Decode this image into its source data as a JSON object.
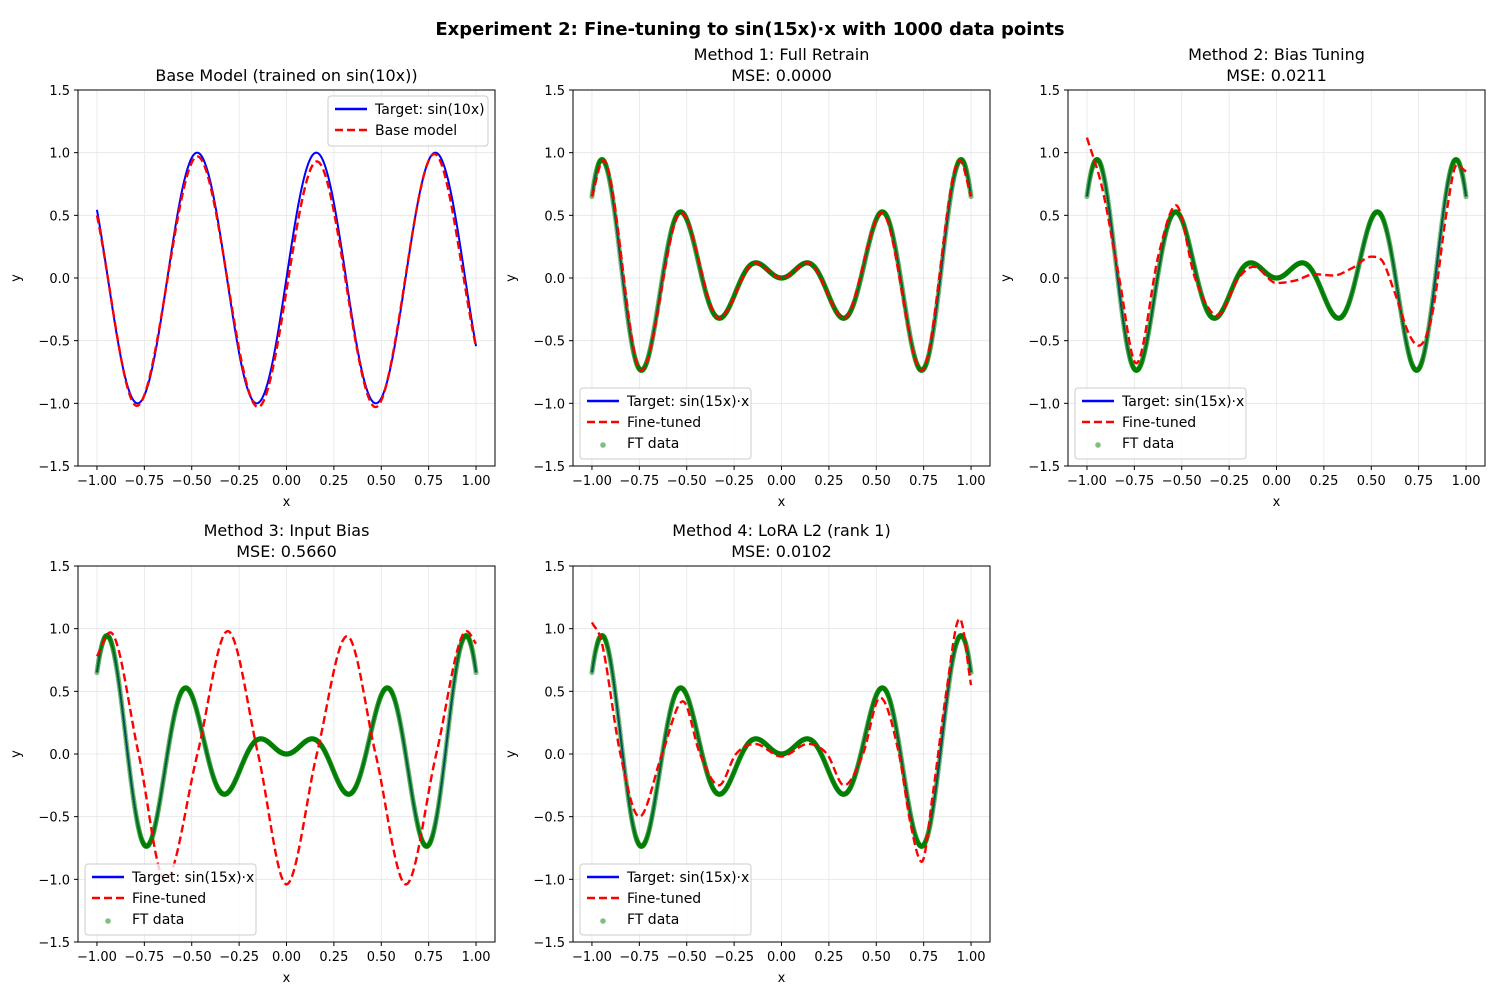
{
  "figure": {
    "suptitle": "Experiment 2: Fine-tuning to sin(15x)·x with 1000 data points"
  },
  "axis_defaults": {
    "xlabel": "x",
    "ylabel": "y",
    "xlim": [
      -1.1,
      1.1
    ],
    "ylim": [
      -1.5,
      1.5
    ],
    "xticks": [
      -1.0,
      -0.75,
      -0.5,
      -0.25,
      0.0,
      0.25,
      0.5,
      0.75,
      1.0
    ],
    "xtick_labels": [
      "−1.00",
      "−0.75",
      "−0.50",
      "−0.25",
      "0.00",
      "0.25",
      "0.50",
      "0.75",
      "1.00"
    ],
    "yticks": [
      -1.5,
      -1.0,
      -0.5,
      0.0,
      0.5,
      1.0,
      1.5
    ],
    "ytick_labels": [
      "−1.5",
      "−1.0",
      "−0.5",
      "0.0",
      "0.5",
      "1.0",
      "1.5"
    ],
    "grid": true
  },
  "colors": {
    "target": "#0000ff",
    "model": "#ff0000",
    "ft_data": "#008000",
    "grid": "#e6e6e6",
    "legend_border": "#cccccc"
  },
  "chart_data": [
    {
      "type": "line",
      "title_lines": [
        "Base Model (trained on sin(10x))"
      ],
      "legend_position": "upper right",
      "legend": [
        "Target: sin(10x)",
        "Base model"
      ],
      "x_range": [
        -1.0,
        1.0
      ],
      "series": [
        {
          "name": "Target: sin(10x)",
          "style": "solid",
          "formula": "sin(10x)",
          "x": [
            -1.0,
            -0.785,
            -0.471,
            -0.157,
            0.157,
            0.471,
            0.785,
            1.0
          ],
          "y": [
            0.544,
            -1.0,
            1.0,
            -1.0,
            1.0,
            -1.0,
            1.0,
            -0.544
          ]
        },
        {
          "name": "Base model",
          "style": "dashed",
          "x": [
            -1.0,
            -0.79,
            -0.47,
            -0.15,
            0.16,
            0.47,
            0.78,
            1.0
          ],
          "y": [
            0.5,
            -1.02,
            0.97,
            -1.03,
            0.93,
            -1.03,
            0.99,
            -0.55
          ]
        }
      ]
    },
    {
      "type": "line",
      "title_lines": [
        "Method 1: Full Retrain",
        "MSE: 0.0000"
      ],
      "legend_position": "lower left",
      "legend": [
        "Target: sin(15x)·x",
        "Fine-tuned",
        "FT data"
      ],
      "x_range": [
        -1.0,
        1.0
      ],
      "series": [
        {
          "name": "Target: sin(15x)·x",
          "style": "solid",
          "formula": "sin(15x)*x"
        },
        {
          "name": "Fine-tuned",
          "style": "dashed",
          "x": [
            -1.0,
            -0.94,
            -0.74,
            -0.53,
            -0.33,
            -0.14,
            0.0,
            0.14,
            0.33,
            0.53,
            0.74,
            0.94,
            1.0
          ],
          "y": [
            0.65,
            0.94,
            -0.74,
            0.52,
            -0.32,
            0.12,
            0.0,
            0.12,
            -0.32,
            0.52,
            -0.74,
            0.94,
            0.65
          ]
        },
        {
          "name": "FT data",
          "style": "scatter",
          "formula": "sin(15x)*x",
          "n_points": 1000
        }
      ]
    },
    {
      "type": "line",
      "title_lines": [
        "Method 2: Bias Tuning",
        "MSE: 0.0211"
      ],
      "legend_position": "lower left",
      "legend": [
        "Target: sin(15x)·x",
        "Fine-tuned",
        "FT data"
      ],
      "x_range": [
        -1.0,
        1.0
      ],
      "series": [
        {
          "name": "Target: sin(15x)·x",
          "style": "solid",
          "formula": "sin(15x)*x"
        },
        {
          "name": "Fine-tuned",
          "style": "dashed",
          "x": [
            -1.0,
            -0.92,
            -0.83,
            -0.74,
            -0.62,
            -0.53,
            -0.43,
            -0.31,
            -0.2,
            -0.12,
            0.0,
            0.1,
            0.2,
            0.3,
            0.4,
            0.5,
            0.55,
            0.62,
            0.7,
            0.75,
            0.82,
            0.9,
            0.95,
            1.0
          ],
          "y": [
            1.12,
            0.72,
            0.0,
            -0.68,
            0.2,
            0.58,
            0.0,
            -0.3,
            0.0,
            0.09,
            -0.04,
            -0.02,
            0.03,
            0.02,
            0.08,
            0.17,
            0.15,
            -0.1,
            -0.45,
            -0.54,
            -0.3,
            0.55,
            0.9,
            0.85
          ]
        },
        {
          "name": "FT data",
          "style": "scatter",
          "formula": "sin(15x)*x",
          "n_points": 1000
        }
      ]
    },
    {
      "type": "line",
      "title_lines": [
        "Method 3: Input Bias",
        "MSE: 0.5660"
      ],
      "legend_position": "lower left",
      "legend": [
        "Target: sin(15x)·x",
        "Fine-tuned",
        "FT data"
      ],
      "x_range": [
        -1.0,
        1.0
      ],
      "series": [
        {
          "name": "Target: sin(15x)·x",
          "style": "solid",
          "formula": "sin(15x)*x"
        },
        {
          "name": "Fine-tuned",
          "style": "dashed",
          "x": [
            -1.0,
            -0.93,
            -0.78,
            -0.64,
            -0.47,
            -0.31,
            -0.15,
            0.0,
            0.16,
            0.32,
            0.47,
            0.63,
            0.79,
            0.95,
            1.0
          ],
          "y": [
            0.78,
            0.97,
            0.0,
            -1.01,
            0.0,
            0.98,
            0.0,
            -1.04,
            0.0,
            0.94,
            0.0,
            -1.04,
            0.0,
            0.98,
            0.88
          ]
        },
        {
          "name": "FT data",
          "style": "scatter",
          "formula": "sin(15x)*x",
          "n_points": 1000
        }
      ]
    },
    {
      "type": "line",
      "title_lines": [
        "Method 4: LoRA L2 (rank 1)",
        "MSE: 0.0102"
      ],
      "legend_position": "lower left",
      "legend": [
        "Target: sin(15x)·x",
        "Fine-tuned",
        "FT data"
      ],
      "x_range": [
        -1.0,
        1.0
      ],
      "series": [
        {
          "name": "Target: sin(15x)·x",
          "style": "solid",
          "formula": "sin(15x)*x"
        },
        {
          "name": "Fine-tuned",
          "style": "dashed",
          "x": [
            -1.0,
            -0.95,
            -0.85,
            -0.75,
            -0.63,
            -0.52,
            -0.43,
            -0.33,
            -0.24,
            -0.14,
            0.0,
            0.14,
            0.24,
            0.33,
            0.43,
            0.52,
            0.62,
            0.68,
            0.74,
            0.8,
            0.87,
            0.94,
            1.0
          ],
          "y": [
            1.05,
            0.9,
            0.0,
            -0.5,
            0.0,
            0.42,
            0.0,
            -0.25,
            0.0,
            0.08,
            -0.02,
            0.08,
            0.0,
            -0.25,
            0.0,
            0.45,
            0.0,
            -0.55,
            -0.86,
            -0.3,
            0.5,
            1.08,
            0.55
          ]
        },
        {
          "name": "FT data",
          "style": "scatter",
          "formula": "sin(15x)*x",
          "n_points": 1000
        }
      ]
    }
  ]
}
